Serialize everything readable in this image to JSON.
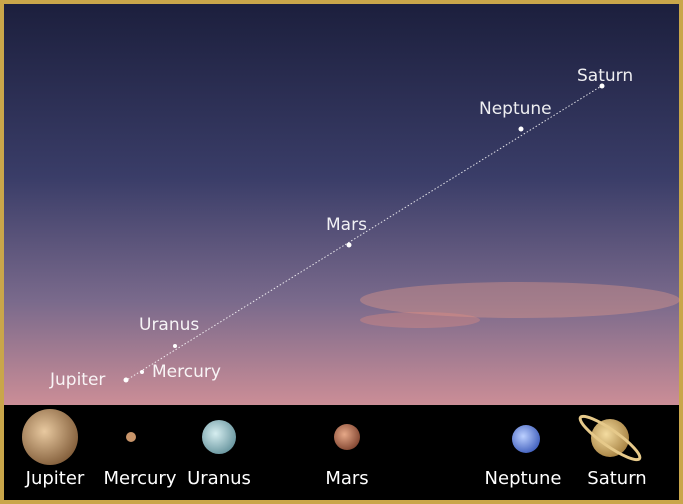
{
  "sky_labels": {
    "saturn": "Saturn",
    "neptune": "Neptune",
    "mars": "Mars",
    "uranus": "Uranus",
    "mercury": "Mercury",
    "jupiter": "Jupiter"
  },
  "planet_row": [
    "Jupiter",
    "Mercury",
    "Uranus",
    "Mars",
    "Neptune",
    "Saturn"
  ]
}
